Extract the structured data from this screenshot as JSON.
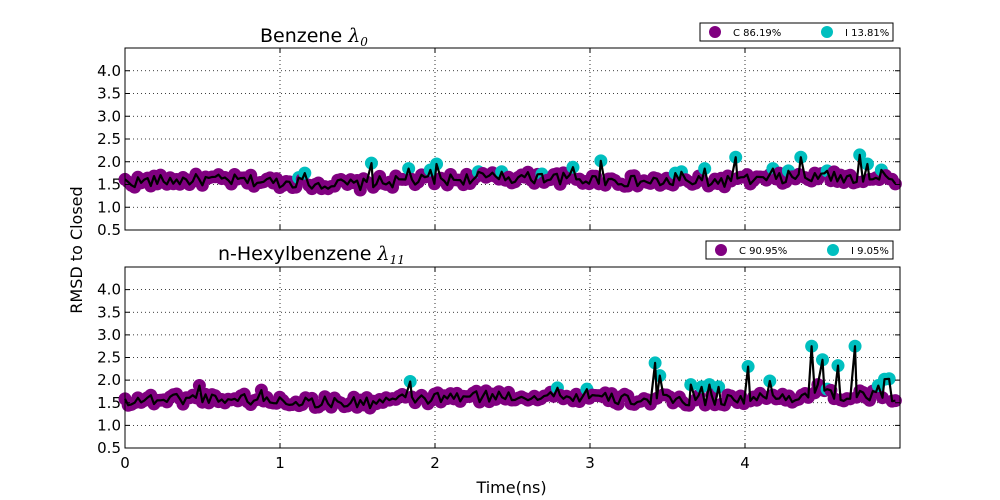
{
  "colors": {
    "C": "#800080",
    "I": "#00BFBF",
    "line": "#000000"
  },
  "y_axis_label": "RMSD to Closed",
  "chart_data": [
    {
      "type": "line",
      "title": "Benzene",
      "lambda_symbol": "λ",
      "lambda_sub": "0",
      "legend": [
        {
          "label": "C 86.19%",
          "state": "C"
        },
        {
          "label": "I 13.81%",
          "state": "I"
        }
      ],
      "xlabel": "",
      "ylabel": "",
      "xlim": [
        0,
        5
      ],
      "ylim": [
        0.5,
        4.5
      ],
      "xticks": [],
      "yticks": [
        "0.5",
        "1.0",
        "1.5",
        "2.0",
        "2.5",
        "3.0",
        "3.5",
        "4.0"
      ],
      "grid": true,
      "legend_position": "top-right",
      "spikes": [
        [
          1.12,
          1.65,
          "I"
        ],
        [
          1.16,
          1.75,
          "I"
        ],
        [
          1.59,
          1.97,
          "I"
        ],
        [
          1.83,
          1.85,
          "I"
        ],
        [
          1.97,
          1.82,
          "I"
        ],
        [
          2.01,
          1.95,
          "I"
        ],
        [
          2.28,
          1.78,
          "I"
        ],
        [
          2.43,
          1.78,
          "I"
        ],
        [
          2.69,
          1.73,
          "I"
        ],
        [
          2.89,
          1.88,
          "I"
        ],
        [
          3.07,
          2.02,
          "I"
        ],
        [
          3.55,
          1.75,
          "I"
        ],
        [
          3.59,
          1.78,
          "I"
        ],
        [
          3.74,
          1.85,
          "I"
        ],
        [
          3.94,
          2.1,
          "I"
        ],
        [
          4.18,
          1.85,
          "I"
        ],
        [
          4.28,
          1.8,
          "I"
        ],
        [
          4.36,
          2.1,
          "I"
        ],
        [
          4.53,
          1.8,
          "I"
        ],
        [
          4.74,
          2.15,
          "I"
        ],
        [
          4.79,
          1.95,
          "I"
        ],
        [
          4.88,
          1.82,
          "I"
        ]
      ]
    },
    {
      "type": "line",
      "title": "n-Hexylbenzene",
      "lambda_symbol": "λ",
      "lambda_sub": "11",
      "legend": [
        {
          "label": "C 90.95%",
          "state": "C"
        },
        {
          "label": "I 9.05%",
          "state": "I"
        }
      ],
      "xlabel": "Time(ns)",
      "ylabel": "",
      "xlim": [
        0,
        5
      ],
      "ylim": [
        0.5,
        4.5
      ],
      "xticks": [
        "0",
        "1",
        "2",
        "3",
        "4"
      ],
      "yticks": [
        "0.5",
        "1.0",
        "1.5",
        "2.0",
        "2.5",
        "3.0",
        "3.5",
        "4.0"
      ],
      "grid": true,
      "legend_position": "top-right",
      "spikes": [
        [
          0.48,
          1.88,
          "C"
        ],
        [
          0.88,
          1.78,
          "C"
        ],
        [
          1.84,
          1.97,
          "I"
        ],
        [
          2.79,
          1.83,
          "I"
        ],
        [
          2.98,
          1.8,
          "I"
        ],
        [
          3.42,
          2.38,
          "I"
        ],
        [
          3.45,
          2.1,
          "I"
        ],
        [
          3.65,
          1.9,
          "I"
        ],
        [
          3.72,
          1.85,
          "I"
        ],
        [
          3.77,
          1.9,
          "I"
        ],
        [
          3.83,
          1.85,
          "I"
        ],
        [
          4.02,
          2.3,
          "I"
        ],
        [
          4.16,
          1.98,
          "I"
        ],
        [
          4.43,
          2.75,
          "I"
        ],
        [
          4.47,
          1.9,
          "C"
        ],
        [
          4.5,
          2.45,
          "I"
        ],
        [
          4.53,
          1.8,
          "I"
        ],
        [
          4.6,
          2.32,
          "I"
        ],
        [
          4.71,
          2.75,
          "I"
        ],
        [
          4.86,
          1.88,
          "I"
        ],
        [
          4.9,
          2.02,
          "I"
        ],
        [
          4.93,
          2.03,
          "I"
        ]
      ]
    }
  ]
}
